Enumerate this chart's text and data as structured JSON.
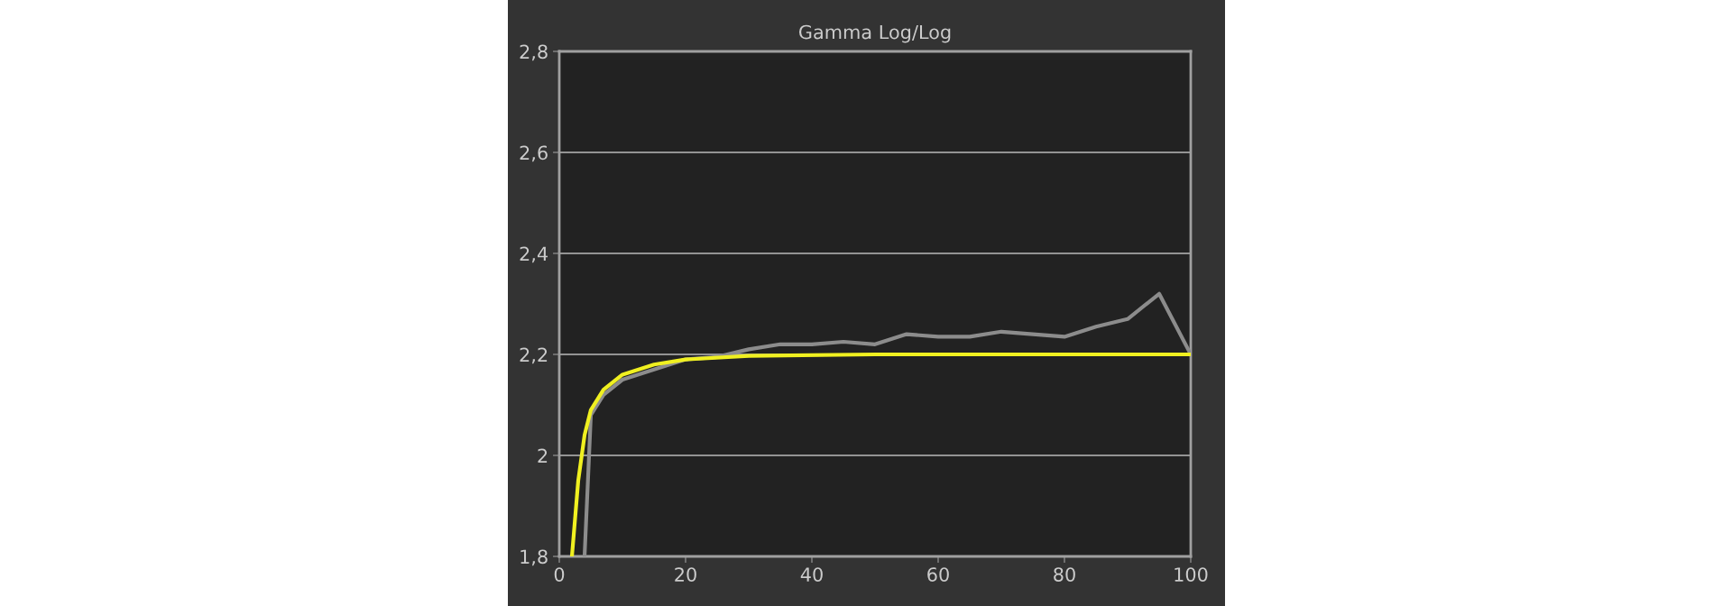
{
  "chart_data": {
    "type": "line",
    "title": "Gamma Log/Log",
    "xlim": [
      0,
      100
    ],
    "xticks": [
      0,
      20,
      40,
      60,
      80,
      100
    ],
    "ylim": [
      1.8,
      2.8
    ],
    "yticks": [
      {
        "value": 1.8,
        "label": "1,8"
      },
      {
        "value": 2.0,
        "label": "2"
      },
      {
        "value": 2.2,
        "label": "2,2"
      },
      {
        "value": 2.4,
        "label": "2,4"
      },
      {
        "value": 2.6,
        "label": "2,6"
      },
      {
        "value": 2.8,
        "label": "2,8"
      }
    ],
    "grid": "y",
    "legend": false,
    "marker": "none",
    "line_style": "solid",
    "series": [
      {
        "color": "#8c8c8c",
        "x": [
          4,
          5,
          7,
          10,
          15,
          20,
          25,
          30,
          35,
          40,
          45,
          50,
          55,
          60,
          65,
          70,
          75,
          80,
          85,
          90,
          95,
          100
        ],
        "values": [
          1.8,
          2.08,
          2.12,
          2.15,
          2.17,
          2.19,
          2.195,
          2.21,
          2.22,
          2.22,
          2.225,
          2.22,
          2.24,
          2.235,
          2.235,
          2.245,
          2.24,
          2.235,
          2.255,
          2.27,
          2.32,
          2.2
        ]
      },
      {
        "color": "#f0f020",
        "x": [
          2,
          3,
          4,
          5,
          7,
          10,
          15,
          20,
          30,
          50,
          100
        ],
        "values": [
          1.8,
          1.95,
          2.04,
          2.09,
          2.13,
          2.16,
          2.18,
          2.19,
          2.197,
          2.2,
          2.2
        ]
      }
    ]
  }
}
